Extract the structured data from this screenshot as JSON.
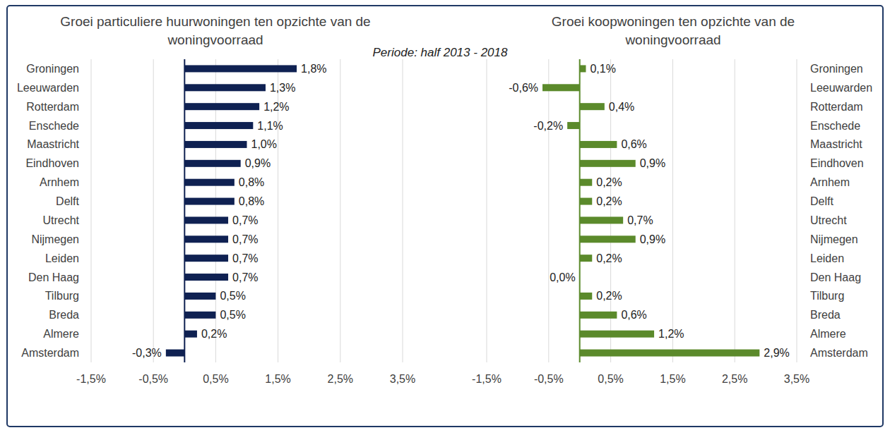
{
  "subtitle": "Periode: half 2013 - 2018",
  "chart_data": [
    {
      "type": "bar",
      "orientation": "horizontal",
      "title": "Groei particuliere huurwoningen ten opzichte van de woningvoorraad",
      "categories": [
        "Groningen",
        "Leeuwarden",
        "Rotterdam",
        "Enschede",
        "Maastricht",
        "Eindhoven",
        "Arnhem",
        "Delft",
        "Utrecht",
        "Nijmegen",
        "Leiden",
        "Den Haag",
        "Tilburg",
        "Breda",
        "Almere",
        "Amsterdam"
      ],
      "values": [
        1.8,
        1.3,
        1.2,
        1.1,
        1.0,
        0.9,
        0.8,
        0.8,
        0.7,
        0.7,
        0.7,
        0.7,
        0.5,
        0.5,
        0.2,
        -0.3
      ],
      "value_labels": [
        "1,8%",
        "1,3%",
        "1,2%",
        "1,1%",
        "1,0%",
        "0,9%",
        "0,8%",
        "0,8%",
        "0,7%",
        "0,7%",
        "0,7%",
        "0,7%",
        "0,5%",
        "0,5%",
        "0,2%",
        "-0,3%"
      ],
      "color": "#0f2152",
      "xlim": [
        -1.5,
        3.5
      ],
      "xticks": [
        {
          "value": -1.5,
          "label": "-1,5%"
        },
        {
          "value": -0.5,
          "label": "-0,5%"
        },
        {
          "value": 0.5,
          "label": "0,5%"
        },
        {
          "value": 1.5,
          "label": "1,5%"
        },
        {
          "value": 2.5,
          "label": "2,5%"
        },
        {
          "value": 3.5,
          "label": "3,5%"
        }
      ],
      "grid": true,
      "data_labels": true
    },
    {
      "type": "bar",
      "orientation": "horizontal",
      "title": "Groei koopwoningen ten opzichte van de woningvoorraad",
      "categories": [
        "Groningen",
        "Leeuwarden",
        "Rotterdam",
        "Enschede",
        "Maastricht",
        "Eindhoven",
        "Arnhem",
        "Delft",
        "Utrecht",
        "Nijmegen",
        "Leiden",
        "Den Haag",
        "Tilburg",
        "Breda",
        "Almere",
        "Amsterdam"
      ],
      "values": [
        0.1,
        -0.6,
        0.4,
        -0.2,
        0.6,
        0.9,
        0.2,
        0.2,
        0.7,
        0.9,
        0.2,
        0.0,
        0.2,
        0.6,
        1.2,
        2.9
      ],
      "value_labels": [
        "0,1%",
        "-0,6%",
        "0,4%",
        "-0,2%",
        "0,6%",
        "0,9%",
        "0,2%",
        "0,2%",
        "0,7%",
        "0,9%",
        "0,2%",
        "0,0%",
        "0,2%",
        "0,6%",
        "1,2%",
        "2,9%"
      ],
      "color": "#5b8a2b",
      "xlim": [
        -1.5,
        3.5
      ],
      "xticks": [
        {
          "value": -1.5,
          "label": "-1,5%"
        },
        {
          "value": -0.5,
          "label": "-0,5%"
        },
        {
          "value": 0.5,
          "label": "0,5%"
        },
        {
          "value": 1.5,
          "label": "1,5%"
        },
        {
          "value": 2.5,
          "label": "2,5%"
        },
        {
          "value": 3.5,
          "label": "3,5%"
        }
      ],
      "grid": true,
      "data_labels": true
    }
  ]
}
